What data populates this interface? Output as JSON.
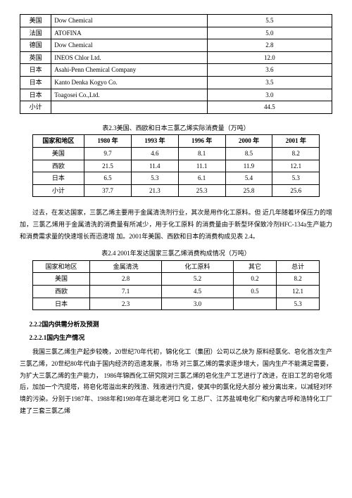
{
  "table1": {
    "rows": [
      {
        "c": "美国",
        "co": "Dow Chemical",
        "v": "5.5"
      },
      {
        "c": "法国",
        "co": "ATOFINA",
        "v": "5.0"
      },
      {
        "c": "德国",
        "co": "Dow Chemical",
        "v": "2.8"
      },
      {
        "c": "英国",
        "co": "INEOS Chlor Ltd.",
        "v": "12.0"
      },
      {
        "c": "日本",
        "co": "Asahi-Penn Chemical Company",
        "v": "3.6"
      },
      {
        "c": "日本",
        "co": "Kanto Denka Kogyo Co.",
        "v": "3.5"
      },
      {
        "c": "日本",
        "co": "Toagosei Co.,Ltd.",
        "v": "3.0"
      },
      {
        "c": "小计",
        "co": "",
        "v": "44.5"
      }
    ]
  },
  "table2": {
    "caption": "表2.3美国、西欧和日本三氯乙烯实际消费量（万吨）",
    "headers": [
      "国家和地区",
      "1980 年",
      "1993 年",
      "1996 年",
      "2000 年",
      "2001 年"
    ],
    "rows": [
      [
        "美国",
        "9.7",
        "4.6",
        "8.1",
        "8.5",
        "8.2"
      ],
      [
        "西欧",
        "21.5",
        "11.4",
        "11.1",
        "11.9",
        "12.1"
      ],
      [
        "日本",
        "6.5",
        "5.3",
        "6.1",
        "5.4",
        "5.3"
      ],
      [
        "小计",
        "37.7",
        "21.3",
        "25.3",
        "25.8",
        "25.6"
      ]
    ]
  },
  "para1": "过去，在发达国家，三氯乙烯主要用于金属清洗剂行业，其次是用作化工原料。但 近几年随着环保压力的增加，三氯乙烯用于金属清洗的消费量有所减少，用于化工原料 的消费量由于新型环保致冷剂HFC-134a生产能力和消费需求量的快速增长而迅速增 加。2001年美国、西欧和日本的消费构成见表 2.4。",
  "table3": {
    "caption": "表2.4 2001年发达国家三氯乙烯消费构成情况（万吨）",
    "headers": [
      "国家和地区",
      "金属清洗",
      "化工原料",
      "其它",
      "总计"
    ],
    "rows": [
      [
        "美国",
        "2.8",
        "5.2",
        "0.2",
        "8.2"
      ],
      [
        "西欧",
        "7.1",
        "4.5",
        "0.5",
        "12.1"
      ],
      [
        "日本",
        "2.3",
        "3.0",
        "",
        "5.3"
      ]
    ]
  },
  "sec1": "2.2.2国内供需分析及预测",
  "sec2": "2.2.2.1国内生产情况",
  "para2": "我国三氯乙烯生产起步较晚，20世纪70年代初，锦化化工（集团）公司以乙炔为 原料经氯化、皂化首次生产三氯乙烯，20世纪80年代由于国内经济的迅速发展，市场 对三氯乙烯的需求逐步增大，国内生产不能满足需要，为扩大三氯乙烯的生产能力， 1986年锦西化工研究院对三氯乙烯的皂化生产工艺进行了改进，在旧工艺的皂化塔 后，加加一个汽提塔，将皂化塔溢出来的残渣、残液进行汽提，使其中的氯化烃大部分 被分离出来，以减轻对环境的污染。分别于1987年、1988年和1989年在湖北老河口 化 工总厂、江苏盐城电化厂和内蒙古呼和浩特化工厂建了三套三氯乙烯"
}
